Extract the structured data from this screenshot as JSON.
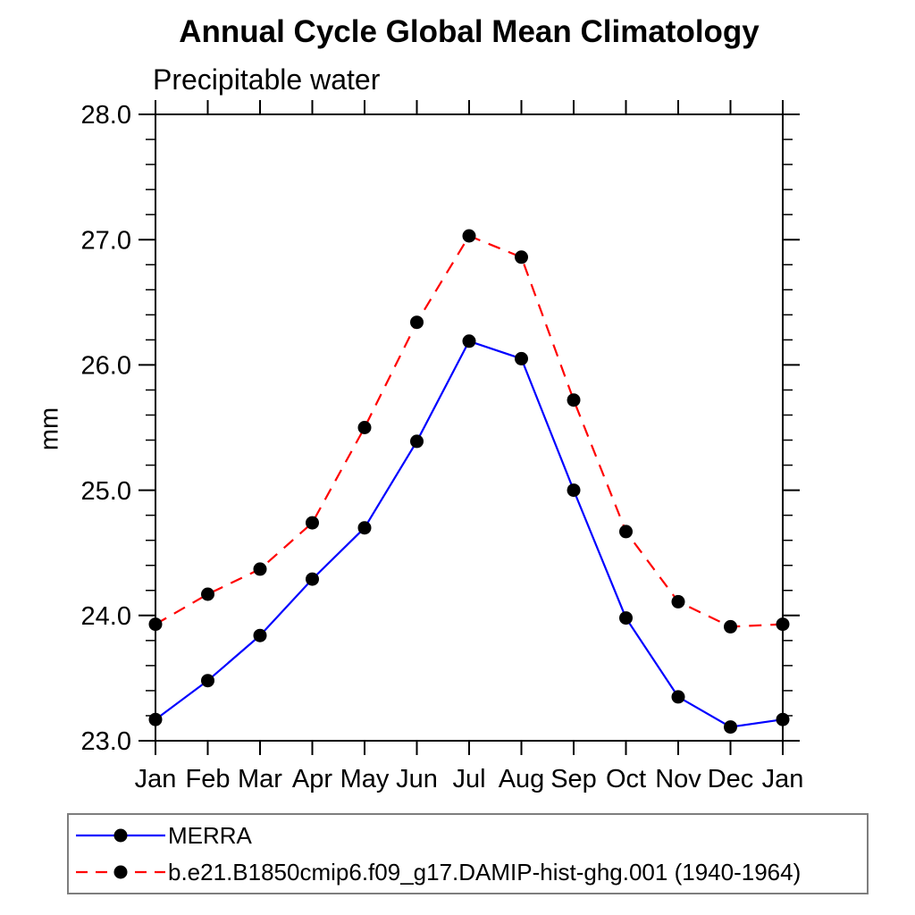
{
  "chart_data": {
    "type": "line",
    "title": "Annual Cycle Global Mean Climatology",
    "subtitle": "Precipitable water",
    "ylabel": "mm",
    "xlabel": "",
    "categories": [
      "Jan",
      "Feb",
      "Mar",
      "Apr",
      "May",
      "Jun",
      "Jul",
      "Aug",
      "Sep",
      "Oct",
      "Nov",
      "Dec",
      "Jan"
    ],
    "series": [
      {
        "key": "merra",
        "name": "MERRA",
        "color": "#0000ff",
        "line_style": "solid",
        "marker": "filled-circle",
        "values": [
          23.17,
          23.48,
          23.84,
          24.29,
          24.7,
          25.39,
          26.19,
          26.05,
          25.0,
          23.98,
          23.35,
          23.11,
          23.17
        ]
      },
      {
        "key": "damip-hist-ghg",
        "name": "b.e21.B1850cmip6.f09_g17.DAMIP-hist-ghg.001 (1940-1964)",
        "color": "#ff0000",
        "line_style": "dashed",
        "marker": "filled-circle",
        "values": [
          23.93,
          24.17,
          24.37,
          24.74,
          25.5,
          26.34,
          27.03,
          26.86,
          25.72,
          24.67,
          24.11,
          23.91,
          23.93
        ]
      }
    ],
    "ylim": [
      23.0,
      28.0
    ],
    "ytick_values": [
      23,
      24,
      25,
      26,
      27,
      28
    ],
    "ytick_labels": [
      "23.0",
      "24.0",
      "25.0",
      "26.0",
      "27.0",
      "28.0"
    ],
    "y_minor_tick_step": 0.2,
    "grid": false,
    "legend_position": "bottom",
    "marker_color": "#000000",
    "axis_color": "#000000"
  }
}
